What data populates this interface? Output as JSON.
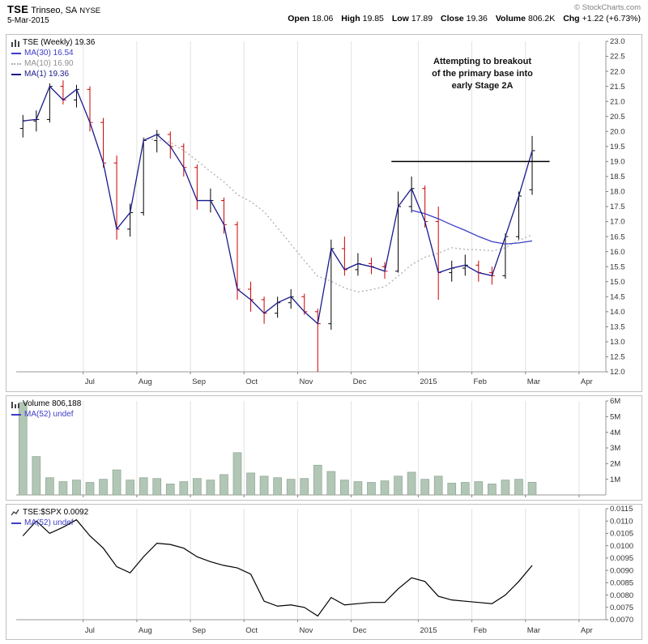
{
  "header": {
    "symbol": "TSE",
    "company": "Trinseo, SA",
    "exchange": "NYSE",
    "date": "5-Mar-2015",
    "copyright": "© StockCharts.com",
    "quote": {
      "open_label": "Open",
      "open": "18.06",
      "high_label": "High",
      "high": "19.85",
      "low_label": "Low",
      "low": "17.89",
      "close_label": "Close",
      "close": "19.36",
      "volume_label": "Volume",
      "volume": "806.2K",
      "chg_label": "Chg",
      "chg": "+1.22 (+6.73%)"
    }
  },
  "price_panel": {
    "legend": {
      "title": "TSE (Weekly) 19.36",
      "ma30": "MA(30) 16.54",
      "ma10": "MA(10) 16.90",
      "ma1": "MA(1) 19.36"
    },
    "annotation": "Attempting to breakout\nof the primary base into\nearly Stage 2A"
  },
  "volume_panel": {
    "legend": {
      "title": "Volume 806,188",
      "ma": "MA(52) undef"
    },
    "ma_color": "#3c3cc8"
  },
  "ratio_panel": {
    "legend": {
      "title": "TSE:$SPX 0.0092",
      "ma": "MA(52) undef"
    },
    "ma_color": "#3c3cc8"
  },
  "chart_data": [
    {
      "type": "ohlc",
      "title": "TSE (Weekly)",
      "ylim": [
        12.0,
        23.0
      ],
      "y_tick_step": 0.5,
      "grid_color": "#e2e2e2",
      "up_color": "#000000",
      "down_color": "#cc0000",
      "x_axis_months": [
        {
          "label": "Jul",
          "index": 5
        },
        {
          "label": "Aug",
          "index": 9
        },
        {
          "label": "Sep",
          "index": 13
        },
        {
          "label": "Oct",
          "index": 17
        },
        {
          "label": "Nov",
          "index": 21
        },
        {
          "label": "Dec",
          "index": 25
        },
        {
          "label": "2015",
          "index": 30
        },
        {
          "label": "Feb",
          "index": 34
        },
        {
          "label": "Mar",
          "index": 38
        },
        {
          "label": "Apr",
          "index": 42
        }
      ],
      "bars": [
        [
          20.1,
          20.55,
          19.8,
          20.35,
          "u"
        ],
        [
          20.35,
          20.7,
          20.0,
          20.4,
          "u"
        ],
        [
          20.4,
          21.6,
          20.3,
          21.5,
          "u"
        ],
        [
          21.5,
          21.7,
          20.9,
          21.05,
          "d"
        ],
        [
          21.05,
          21.55,
          20.8,
          21.4,
          "u"
        ],
        [
          21.4,
          21.5,
          20.0,
          20.3,
          "d"
        ],
        [
          20.3,
          20.45,
          18.8,
          18.95,
          "d"
        ],
        [
          18.95,
          19.2,
          16.4,
          16.75,
          "d"
        ],
        [
          16.75,
          17.6,
          16.5,
          17.3,
          "u"
        ],
        [
          17.3,
          19.8,
          17.2,
          19.7,
          "u"
        ],
        [
          19.7,
          20.05,
          19.3,
          19.9,
          "u"
        ],
        [
          19.9,
          20.0,
          19.1,
          19.5,
          "d"
        ],
        [
          19.5,
          19.6,
          18.5,
          18.8,
          "d"
        ],
        [
          18.8,
          18.9,
          17.4,
          17.7,
          "d"
        ],
        [
          17.7,
          18.1,
          17.3,
          17.7,
          "u"
        ],
        [
          17.7,
          17.8,
          16.6,
          16.9,
          "d"
        ],
        [
          16.9,
          17.0,
          14.4,
          14.75,
          "d"
        ],
        [
          14.75,
          15.0,
          14.0,
          14.4,
          "d"
        ],
        [
          14.4,
          14.5,
          13.6,
          13.95,
          "d"
        ],
        [
          13.95,
          14.5,
          13.8,
          14.3,
          "u"
        ],
        [
          14.3,
          14.75,
          14.1,
          14.5,
          "u"
        ],
        [
          14.5,
          14.6,
          13.9,
          14.0,
          "d"
        ],
        [
          14.0,
          14.1,
          12.0,
          13.6,
          "d"
        ],
        [
          13.6,
          16.4,
          13.4,
          16.1,
          "u"
        ],
        [
          16.1,
          16.5,
          15.2,
          15.4,
          "d"
        ],
        [
          15.4,
          15.95,
          15.2,
          15.6,
          "u"
        ],
        [
          15.6,
          15.8,
          15.25,
          15.5,
          "d"
        ],
        [
          15.5,
          15.65,
          15.1,
          15.35,
          "d"
        ],
        [
          15.35,
          18.0,
          15.3,
          17.5,
          "u"
        ],
        [
          17.5,
          18.5,
          17.3,
          18.1,
          "u"
        ],
        [
          18.1,
          18.2,
          16.8,
          17.0,
          "d"
        ],
        [
          17.0,
          17.5,
          14.4,
          15.3,
          "d"
        ],
        [
          15.3,
          15.7,
          15.0,
          15.45,
          "u"
        ],
        [
          15.45,
          15.9,
          15.2,
          15.55,
          "u"
        ],
        [
          15.55,
          15.7,
          15.0,
          15.3,
          "d"
        ],
        [
          15.3,
          15.5,
          14.9,
          15.2,
          "d"
        ],
        [
          15.2,
          16.6,
          15.1,
          16.5,
          "u"
        ],
        [
          16.5,
          18.0,
          16.4,
          17.85,
          "u"
        ],
        [
          18.06,
          19.85,
          17.89,
          19.36,
          "u"
        ]
      ],
      "overlays": [
        {
          "name": "MA(30)",
          "window": 30,
          "color": "#3c3cc8",
          "style": "solid",
          "last_value": 16.54
        },
        {
          "name": "MA(10)",
          "window": 10,
          "color": "#b0b0b0",
          "style": "dotted",
          "last_value": 16.9
        },
        {
          "name": "MA(1)",
          "window": 1,
          "color": "#1a1a8c",
          "style": "solid",
          "last_value": 19.36
        }
      ],
      "trendline": {
        "price": 19.0,
        "from_index": 27.5,
        "to_index": 39.3,
        "color": "#000000"
      },
      "annotation": "Attempting to breakout of the primary base into early Stage 2A"
    },
    {
      "type": "bar",
      "name": "Volume",
      "last_value": "806,188",
      "ylim": [
        0,
        6000000
      ],
      "y_ticks": [
        {
          "v": 1000000,
          "label": "1M"
        },
        {
          "v": 2000000,
          "label": "2M"
        },
        {
          "v": 3000000,
          "label": "3M"
        },
        {
          "v": 4000000,
          "label": "4M"
        },
        {
          "v": 5000000,
          "label": "5M"
        },
        {
          "v": 6000000,
          "label": "6M"
        }
      ],
      "bar_color": "#b2c6b6",
      "bar_edge": "#90a795",
      "values": [
        5900000,
        2450000,
        1100000,
        850000,
        950000,
        800000,
        1000000,
        1600000,
        950000,
        1100000,
        1050000,
        700000,
        850000,
        1050000,
        950000,
        1300000,
        2700000,
        1400000,
        1200000,
        1100000,
        1000000,
        1050000,
        1900000,
        1500000,
        950000,
        850000,
        800000,
        900000,
        1200000,
        1450000,
        1000000,
        1200000,
        750000,
        800000,
        850000,
        700000,
        950000,
        1000000,
        810000
      ]
    },
    {
      "type": "line",
      "name": "TSE:$SPX",
      "last_value": 0.0092,
      "ylim": [
        0.007,
        0.0115
      ],
      "y_tick_step": 0.0005,
      "color": "#000000",
      "values": [
        0.0104,
        0.011,
        0.0105,
        0.01075,
        0.01105,
        0.0104,
        0.0099,
        0.00915,
        0.0089,
        0.00955,
        0.0101,
        0.01005,
        0.0099,
        0.00955,
        0.00935,
        0.0092,
        0.0091,
        0.00885,
        0.00775,
        0.00755,
        0.0076,
        0.0075,
        0.00715,
        0.0079,
        0.0076,
        0.00765,
        0.0077,
        0.0077,
        0.00825,
        0.0087,
        0.00855,
        0.00795,
        0.0078,
        0.00775,
        0.0077,
        0.00765,
        0.008,
        0.00855,
        0.0092
      ]
    }
  ]
}
